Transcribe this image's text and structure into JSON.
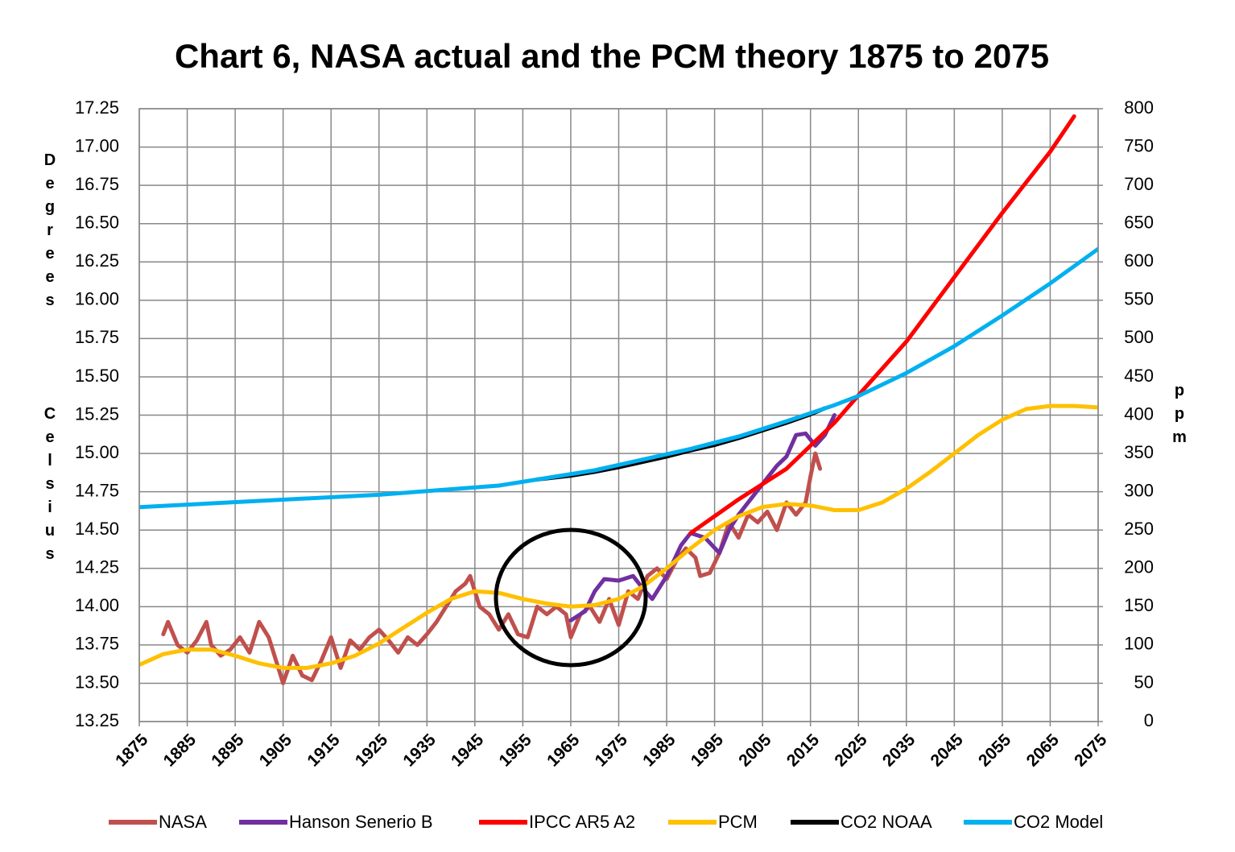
{
  "chart_data": {
    "type": "line",
    "title": "Chart 6, NASA actual and the PCM theory 1875 to 2075",
    "y_label": "Degrees",
    "y_label_2": "Celsius",
    "y2_label": "ppm",
    "xlim": [
      1875,
      2075
    ],
    "xticks": [
      1875,
      1885,
      1895,
      1905,
      1915,
      1925,
      1935,
      1945,
      1955,
      1965,
      1975,
      1985,
      1995,
      2005,
      2015,
      2025,
      2035,
      2045,
      2055,
      2065,
      2075
    ],
    "ylim": [
      13.25,
      17.25
    ],
    "yticks": [
      13.25,
      {
        "value": 13.5,
        "label": "13.50"
      },
      13.75,
      {
        "value": 14,
        "label": "14.00"
      },
      14.25,
      {
        "value": 14.5,
        "label": "14.50"
      },
      14.75,
      {
        "value": 15,
        "label": "15.00"
      },
      15.25,
      {
        "value": 15.5,
        "label": "15.50"
      },
      15.75,
      {
        "value": 16,
        "label": "16.00"
      },
      16.25,
      {
        "value": 16.5,
        "label": "16.50"
      },
      16.75,
      {
        "value": 17,
        "label": "17.00"
      },
      17.25
    ],
    "y2lim": [
      0,
      800
    ],
    "y2ticks": [
      0,
      50,
      100,
      150,
      200,
      250,
      300,
      350,
      400,
      450,
      500,
      550,
      600,
      650,
      700,
      750,
      800
    ],
    "grid": true,
    "legend": "bottom",
    "series": [
      {
        "name": "NASA",
        "color": "#c0504d",
        "x": [
          1880,
          1881,
          1883,
          1885,
          1887,
          1889,
          1890,
          1892,
          1894,
          1896,
          1898,
          1900,
          1902,
          1904,
          1905,
          1907,
          1909,
          1911,
          1913,
          1915,
          1917,
          1919,
          1921,
          1923,
          1925,
          1927,
          1929,
          1931,
          1933,
          1935,
          1937,
          1939,
          1941,
          1943,
          1944,
          1946,
          1948,
          1950,
          1952,
          1954,
          1956,
          1958,
          1960,
          1962,
          1964,
          1965,
          1967,
          1969,
          1971,
          1973,
          1975,
          1977,
          1979,
          1981,
          1983,
          1985,
          1987,
          1989,
          1991,
          1992,
          1994,
          1996,
          1998,
          2000,
          2002,
          2004,
          2006,
          2008,
          2010,
          2012,
          2014,
          2015,
          2016,
          2017
        ],
        "values": [
          13.82,
          13.9,
          13.75,
          13.7,
          13.78,
          13.9,
          13.75,
          13.68,
          13.72,
          13.8,
          13.7,
          13.9,
          13.8,
          13.6,
          13.5,
          13.68,
          13.55,
          13.52,
          13.65,
          13.8,
          13.6,
          13.78,
          13.72,
          13.8,
          13.85,
          13.78,
          13.7,
          13.8,
          13.75,
          13.82,
          13.9,
          14.0,
          14.1,
          14.15,
          14.2,
          14.0,
          13.95,
          13.85,
          13.95,
          13.82,
          13.8,
          14.0,
          13.95,
          14.0,
          13.95,
          13.8,
          13.95,
          14.0,
          13.9,
          14.05,
          13.88,
          14.1,
          14.05,
          14.2,
          14.25,
          14.18,
          14.3,
          14.38,
          14.32,
          14.2,
          14.22,
          14.35,
          14.55,
          14.45,
          14.6,
          14.55,
          14.62,
          14.5,
          14.68,
          14.6,
          14.68,
          14.85,
          15.0,
          14.9
        ]
      },
      {
        "name": "Hanson Senerio B",
        "color": "#7030a0",
        "x": [
          1965,
          1968,
          1970,
          1972,
          1975,
          1978,
          1980,
          1982,
          1985,
          1988,
          1990,
          1993,
          1996,
          1998,
          2000,
          2003,
          2005,
          2008,
          2010,
          2012,
          2014,
          2016,
          2018,
          2020
        ],
        "values": [
          13.91,
          13.97,
          14.1,
          14.18,
          14.17,
          14.2,
          14.12,
          14.05,
          14.2,
          14.4,
          14.48,
          14.45,
          14.35,
          14.5,
          14.6,
          14.72,
          14.8,
          14.92,
          14.98,
          15.12,
          15.13,
          15.05,
          15.12,
          15.25
        ]
      },
      {
        "name": "IPCC AR5 A2",
        "color": "#ff0000",
        "x": [
          1990,
          2000,
          2010,
          2015,
          2020,
          2025,
          2035,
          2045,
          2055,
          2065,
          2070
        ],
        "values": [
          14.48,
          14.7,
          14.9,
          15.05,
          15.2,
          15.38,
          15.73,
          16.15,
          16.57,
          16.97,
          17.2
        ]
      },
      {
        "name": "PCM",
        "color": "#ffc000",
        "x": [
          1875,
          1880,
          1885,
          1890,
          1895,
          1900,
          1905,
          1910,
          1915,
          1920,
          1925,
          1930,
          1935,
          1940,
          1945,
          1950,
          1955,
          1960,
          1965,
          1970,
          1975,
          1980,
          1985,
          1990,
          1995,
          2000,
          2005,
          2010,
          2015,
          2020,
          2025,
          2030,
          2035,
          2040,
          2045,
          2050,
          2055,
          2060,
          2065,
          2070,
          2075
        ],
        "values": [
          13.62,
          13.69,
          13.72,
          13.72,
          13.68,
          13.63,
          13.6,
          13.6,
          13.63,
          13.68,
          13.76,
          13.86,
          13.96,
          14.05,
          14.1,
          14.09,
          14.05,
          14.02,
          14.0,
          14.01,
          14.05,
          14.13,
          14.25,
          14.38,
          14.5,
          14.59,
          14.65,
          14.67,
          14.66,
          14.63,
          14.63,
          14.68,
          14.77,
          14.88,
          15.0,
          15.12,
          15.22,
          15.29,
          15.31,
          15.31,
          15.3
        ]
      },
      {
        "name": "CO2 NOAA",
        "color": "#000000",
        "axis": "y2",
        "x": [
          1958,
          1965,
          1970,
          1975,
          1980,
          1985,
          1990,
          1995,
          2000,
          2005,
          2010,
          2015,
          2018
        ],
        "values": [
          316,
          321,
          326,
          332,
          339,
          346,
          354,
          361,
          370,
          380,
          390,
          401,
          409
        ]
      },
      {
        "name": "CO2 Model",
        "color": "#00b0f0",
        "axis": "y2",
        "x": [
          1875,
          1900,
          1925,
          1950,
          1960,
          1970,
          1980,
          1990,
          2000,
          2010,
          2020,
          2025,
          2035,
          2045,
          2055,
          2065,
          2075
        ],
        "values": [
          280,
          288,
          296,
          308,
          318,
          328,
          342,
          356,
          372,
          392,
          413,
          425,
          455,
          490,
          530,
          572,
          617
        ]
      }
    ]
  }
}
